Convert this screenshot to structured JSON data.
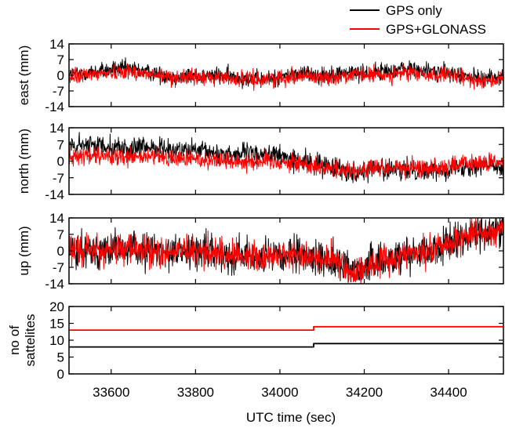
{
  "chart_data": [
    {
      "type": "line",
      "id": "east",
      "ylabel": "east (mm)",
      "ylim": [
        -14,
        14
      ],
      "yticks": [
        14,
        7,
        0,
        -7,
        -14
      ],
      "ytick_labels": [
        "14",
        "7",
        "0",
        "-7",
        "-14"
      ],
      "xlim": [
        33500,
        34530
      ],
      "series": [
        {
          "name": "GPS only",
          "color": "#000000",
          "noise": 2.6,
          "trend": [
            [
              33500,
              0
            ],
            [
              33580,
              2
            ],
            [
              33640,
              3
            ],
            [
              33700,
              1
            ],
            [
              33750,
              -1
            ],
            [
              33850,
              0
            ],
            [
              33950,
              -2
            ],
            [
              34000,
              -1
            ],
            [
              34050,
              1
            ],
            [
              34100,
              0
            ],
            [
              34150,
              1
            ],
            [
              34200,
              1
            ],
            [
              34250,
              2
            ],
            [
              34300,
              3
            ],
            [
              34350,
              2
            ],
            [
              34400,
              1
            ],
            [
              34450,
              -1
            ],
            [
              34530,
              -1
            ]
          ]
        },
        {
          "name": "GPS+GLONASS",
          "color": "#ff0000",
          "noise": 2.5,
          "trend": [
            [
              33500,
              -1
            ],
            [
              33580,
              1
            ],
            [
              33640,
              2
            ],
            [
              33700,
              0
            ],
            [
              33750,
              -1
            ],
            [
              33850,
              -1
            ],
            [
              33950,
              -2
            ],
            [
              34000,
              -1
            ],
            [
              34050,
              0
            ],
            [
              34100,
              -1
            ],
            [
              34150,
              0
            ],
            [
              34200,
              0
            ],
            [
              34250,
              0
            ],
            [
              34300,
              1
            ],
            [
              34350,
              0
            ],
            [
              34400,
              0
            ],
            [
              34450,
              -2
            ],
            [
              34530,
              -2
            ]
          ]
        }
      ]
    },
    {
      "type": "line",
      "id": "north",
      "ylabel": "north (mm)",
      "ylim": [
        -14,
        14
      ],
      "yticks": [
        14,
        7,
        0,
        -7,
        -14
      ],
      "ytick_labels": [
        "14",
        "7",
        "0",
        "-7",
        "-14"
      ],
      "xlim": [
        33500,
        34530
      ],
      "series": [
        {
          "name": "GPS only",
          "color": "#000000",
          "noise": 3.0,
          "trend": [
            [
              33500,
              6
            ],
            [
              33580,
              7
            ],
            [
              33640,
              5
            ],
            [
              33700,
              6
            ],
            [
              33750,
              5
            ],
            [
              33800,
              4
            ],
            [
              33900,
              3
            ],
            [
              33980,
              3
            ],
            [
              34050,
              0
            ],
            [
              34120,
              -2
            ],
            [
              34180,
              -5
            ],
            [
              34220,
              -3
            ],
            [
              34280,
              -4
            ],
            [
              34350,
              -4
            ],
            [
              34400,
              -3
            ],
            [
              34450,
              -2
            ],
            [
              34530,
              -2
            ]
          ]
        },
        {
          "name": "GPS+GLONASS",
          "color": "#ff0000",
          "noise": 2.8,
          "trend": [
            [
              33500,
              2
            ],
            [
              33580,
              2
            ],
            [
              33640,
              1
            ],
            [
              33700,
              2
            ],
            [
              33750,
              1
            ],
            [
              33800,
              1
            ],
            [
              33900,
              0
            ],
            [
              33980,
              0
            ],
            [
              34050,
              -1
            ],
            [
              34120,
              -3
            ],
            [
              34180,
              -4
            ],
            [
              34220,
              -3
            ],
            [
              34280,
              -3
            ],
            [
              34350,
              -3
            ],
            [
              34400,
              -2
            ],
            [
              34450,
              -1
            ],
            [
              34530,
              -1
            ]
          ]
        }
      ]
    },
    {
      "type": "line",
      "id": "up",
      "ylabel": "up (mm)",
      "ylim": [
        -14,
        14
      ],
      "yticks": [
        14,
        7,
        0,
        -7,
        -14
      ],
      "ytick_labels": [
        "14",
        "7",
        "0",
        "-7",
        "-14"
      ],
      "xlim": [
        33500,
        34530
      ],
      "series": [
        {
          "name": "GPS only",
          "color": "#000000",
          "noise": 5.2,
          "trend": [
            [
              33500,
              2
            ],
            [
              33580,
              0
            ],
            [
              33640,
              1
            ],
            [
              33700,
              0
            ],
            [
              33800,
              0
            ],
            [
              33900,
              -2
            ],
            [
              33980,
              -3
            ],
            [
              34050,
              -2
            ],
            [
              34120,
              -4
            ],
            [
              34180,
              -8
            ],
            [
              34230,
              -5
            ],
            [
              34300,
              -1
            ],
            [
              34350,
              0
            ],
            [
              34400,
              3
            ],
            [
              34450,
              7
            ],
            [
              34530,
              9
            ]
          ]
        },
        {
          "name": "GPS+GLONASS",
          "color": "#ff0000",
          "noise": 4.6,
          "trend": [
            [
              33500,
              1
            ],
            [
              33580,
              0
            ],
            [
              33640,
              1
            ],
            [
              33700,
              -1
            ],
            [
              33800,
              0
            ],
            [
              33900,
              -2
            ],
            [
              33980,
              -2
            ],
            [
              34050,
              -2
            ],
            [
              34120,
              -4
            ],
            [
              34180,
              -9
            ],
            [
              34230,
              -5
            ],
            [
              34300,
              -1
            ],
            [
              34350,
              0
            ],
            [
              34400,
              3
            ],
            [
              34450,
              7
            ],
            [
              34530,
              9
            ]
          ]
        }
      ]
    },
    {
      "type": "line",
      "id": "satellites",
      "ylabel": "no of\nsattelites",
      "ylabel_lines": [
        "no of",
        "sattelites"
      ],
      "ylim": [
        0,
        20
      ],
      "yticks": [
        20,
        15,
        10,
        5,
        0
      ],
      "ytick_labels": [
        "20",
        "15",
        "10",
        "5",
        "0"
      ],
      "xlim": [
        33500,
        34530
      ],
      "xticks": [
        33600,
        33800,
        34000,
        34200,
        34400
      ],
      "xtick_labels": [
        "33600",
        "33800",
        "34000",
        "34200",
        "34400"
      ],
      "xlabel": "UTC time (sec)",
      "series": [
        {
          "name": "GPS only",
          "color": "#000000",
          "x": [
            33500,
            34080,
            34080,
            34530
          ],
          "y": [
            8,
            8,
            9,
            9
          ]
        },
        {
          "name": "GPS+GLONASS",
          "color": "#ff0000",
          "x": [
            33500,
            34080,
            34080,
            34530
          ],
          "y": [
            13,
            13,
            14,
            14
          ]
        }
      ]
    }
  ],
  "legend": {
    "placement": "top-right",
    "entries": [
      {
        "label": "GPS only",
        "color": "#000000"
      },
      {
        "label": "GPS+GLONASS",
        "color": "#ff0000"
      }
    ]
  }
}
